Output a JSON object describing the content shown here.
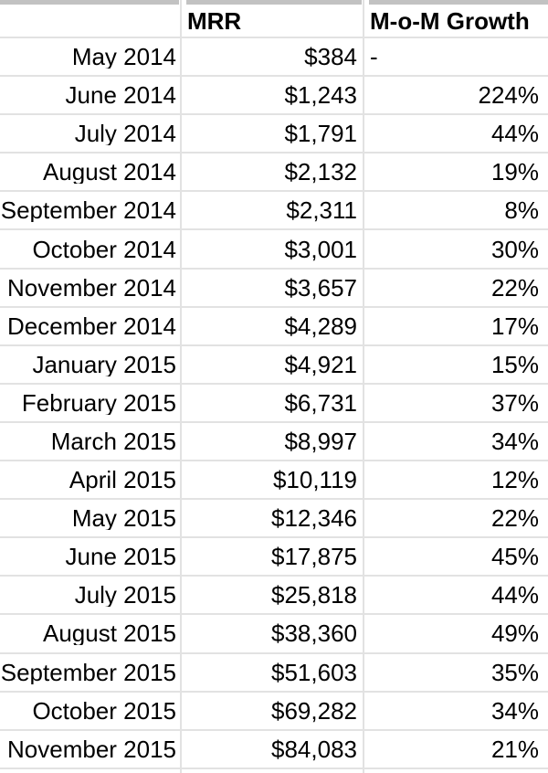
{
  "app": {
    "type": "spreadsheet-table-screenshot"
  },
  "colors": {
    "background": "#ffffff",
    "grid_line": "#e2e2e2",
    "top_strip": "#c2c2c2",
    "text": "#000000"
  },
  "table": {
    "columns": [
      {
        "header": "",
        "align": "right"
      },
      {
        "header": "MRR",
        "align": "left"
      },
      {
        "header": "M-o-M Growth",
        "align": "left"
      }
    ],
    "rows": [
      {
        "month": "May 2014",
        "mrr": "$384",
        "growth": "-"
      },
      {
        "month": "June 2014",
        "mrr": "$1,243",
        "growth": "224%"
      },
      {
        "month": "July 2014",
        "mrr": "$1,791",
        "growth": "44%"
      },
      {
        "month": "August 2014",
        "mrr": "$2,132",
        "growth": "19%"
      },
      {
        "month": "September 2014",
        "mrr": "$2,311",
        "growth": "8%"
      },
      {
        "month": "October 2014",
        "mrr": "$3,001",
        "growth": "30%"
      },
      {
        "month": "November 2014",
        "mrr": "$3,657",
        "growth": "22%"
      },
      {
        "month": "December 2014",
        "mrr": "$4,289",
        "growth": "17%"
      },
      {
        "month": "January 2015",
        "mrr": "$4,921",
        "growth": "15%"
      },
      {
        "month": "February 2015",
        "mrr": "$6,731",
        "growth": "37%"
      },
      {
        "month": "March 2015",
        "mrr": "$8,997",
        "growth": "34%"
      },
      {
        "month": "April 2015",
        "mrr": "$10,119",
        "growth": "12%"
      },
      {
        "month": "May 2015",
        "mrr": "$12,346",
        "growth": "22%"
      },
      {
        "month": "June 2015",
        "mrr": "$17,875",
        "growth": "45%"
      },
      {
        "month": "July 2015",
        "mrr": "$25,818",
        "growth": "44%"
      },
      {
        "month": "August 2015",
        "mrr": "$38,360",
        "growth": "49%"
      },
      {
        "month": "September 2015",
        "mrr": "$51,603",
        "growth": "35%"
      },
      {
        "month": "October 2015",
        "mrr": "$69,282",
        "growth": "34%"
      },
      {
        "month": "November 2015",
        "mrr": "$84,083",
        "growth": "21%"
      }
    ]
  }
}
